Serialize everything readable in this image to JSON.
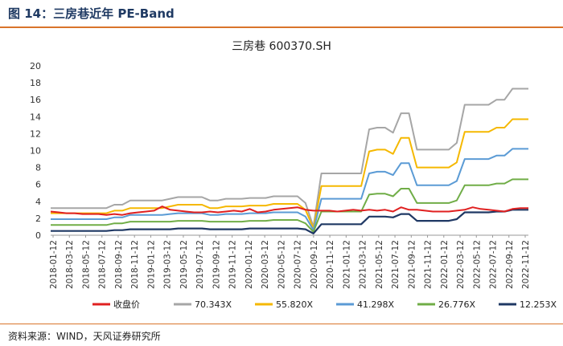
{
  "figure": {
    "title": "图 14：三房巷近年 PE-Band",
    "source": "资料来源：WIND，天风证券研究所"
  },
  "colors": {
    "accent_rule": "#d9742b",
    "title_text": "#1f3a63"
  },
  "chart_data": {
    "type": "line",
    "title": "三房巷 600370.SH",
    "xlabel": "",
    "ylabel": "",
    "ylim": [
      0,
      20
    ],
    "yticks": [
      0,
      2,
      4,
      6,
      8,
      10,
      12,
      14,
      16,
      18,
      20
    ],
    "grid": false,
    "legend_position": "bottom",
    "x_tick_labels": [
      "2018-01-12",
      "2018-03-12",
      "2018-05-12",
      "2018-07-12",
      "2018-09-12",
      "2018-11-12",
      "2019-01-12",
      "2019-03-12",
      "2019-05-12",
      "2019-07-12",
      "2019-09-12",
      "2019-11-12",
      "2020-01-12",
      "2020-03-12",
      "2020-05-12",
      "2020-07-12",
      "2020-09-12",
      "2020-11-12",
      "2021-01-12",
      "2021-03-12",
      "2021-05-12",
      "2021-07-12",
      "2021-09-12",
      "2021-11-12",
      "2022-01-12",
      "2022-03-12",
      "2022-05-12",
      "2022-07-12",
      "2022-09-12",
      "2022-11-12"
    ],
    "x": [
      "2018-01",
      "2018-02",
      "2018-03",
      "2018-04",
      "2018-05",
      "2018-06",
      "2018-07",
      "2018-08",
      "2018-09",
      "2018-10",
      "2018-11",
      "2018-12",
      "2019-01",
      "2019-02",
      "2019-03",
      "2019-04",
      "2019-05",
      "2019-06",
      "2019-07",
      "2019-08",
      "2019-09",
      "2019-10",
      "2019-11",
      "2019-12",
      "2020-01",
      "2020-02",
      "2020-03",
      "2020-04",
      "2020-05",
      "2020-06",
      "2020-07",
      "2020-08",
      "2020-09",
      "2020-10",
      "2020-11",
      "2020-12",
      "2021-01",
      "2021-02",
      "2021-03",
      "2021-04",
      "2021-05",
      "2021-06",
      "2021-07",
      "2021-08",
      "2021-09",
      "2021-10",
      "2021-11",
      "2021-12",
      "2022-01",
      "2022-02",
      "2022-03",
      "2022-04",
      "2022-05",
      "2022-06",
      "2022-07",
      "2022-08",
      "2022-09",
      "2022-10",
      "2022-11",
      "2022-12",
      "2023-01"
    ],
    "series": [
      {
        "name": "收盘价",
        "color": "#e02020",
        "width": 2,
        "values": [
          2.8,
          2.7,
          2.6,
          2.6,
          2.5,
          2.5,
          2.5,
          2.4,
          2.5,
          2.4,
          2.6,
          2.7,
          2.8,
          2.9,
          3.4,
          3.0,
          2.9,
          2.8,
          2.7,
          2.7,
          2.8,
          2.7,
          2.8,
          2.9,
          2.8,
          3.1,
          2.7,
          2.8,
          3.0,
          3.1,
          3.2,
          3.3,
          3.0,
          2.9,
          2.9,
          2.9,
          2.8,
          2.9,
          3.0,
          2.9,
          3.0,
          2.9,
          3.0,
          2.8,
          3.3,
          3.0,
          3.0,
          2.9,
          2.8,
          2.8,
          2.8,
          2.9,
          3.0,
          3.3,
          3.1,
          3.0,
          2.9,
          2.8,
          3.1,
          3.2,
          3.2
        ]
      },
      {
        "name": "70.343X",
        "color": "#a6a6a6",
        "width": 2,
        "values": [
          3.2,
          3.2,
          3.2,
          3.2,
          3.2,
          3.2,
          3.2,
          3.2,
          3.6,
          3.6,
          4.1,
          4.1,
          4.1,
          4.1,
          4.1,
          4.3,
          4.5,
          4.5,
          4.5,
          4.5,
          4.1,
          4.1,
          4.3,
          4.3,
          4.3,
          4.4,
          4.4,
          4.4,
          4.6,
          4.6,
          4.6,
          4.6,
          3.8,
          1.0,
          7.3,
          7.3,
          7.3,
          7.3,
          7.3,
          7.3,
          12.5,
          12.7,
          12.7,
          12.1,
          14.4,
          14.4,
          10.1,
          10.1,
          10.1,
          10.1,
          10.1,
          10.9,
          15.4,
          15.4,
          15.4,
          15.4,
          16.0,
          16.0,
          17.3,
          17.3,
          17.3
        ]
      },
      {
        "name": "55.820X",
        "color": "#f5b800",
        "width": 2,
        "values": [
          2.6,
          2.6,
          2.6,
          2.6,
          2.6,
          2.6,
          2.6,
          2.6,
          2.9,
          2.9,
          3.2,
          3.2,
          3.2,
          3.2,
          3.2,
          3.4,
          3.6,
          3.6,
          3.6,
          3.6,
          3.2,
          3.2,
          3.4,
          3.4,
          3.4,
          3.5,
          3.5,
          3.5,
          3.7,
          3.7,
          3.7,
          3.7,
          3.0,
          0.8,
          5.8,
          5.8,
          5.8,
          5.8,
          5.8,
          5.8,
          9.9,
          10.1,
          10.1,
          9.6,
          11.5,
          11.5,
          8.0,
          8.0,
          8.0,
          8.0,
          8.0,
          8.6,
          12.2,
          12.2,
          12.2,
          12.2,
          12.7,
          12.7,
          13.7,
          13.7,
          13.7
        ]
      },
      {
        "name": "41.298X",
        "color": "#5b9bd5",
        "width": 2,
        "values": [
          1.9,
          1.9,
          1.9,
          1.9,
          1.9,
          1.9,
          1.9,
          1.9,
          2.1,
          2.1,
          2.4,
          2.4,
          2.4,
          2.4,
          2.4,
          2.5,
          2.6,
          2.6,
          2.6,
          2.6,
          2.4,
          2.4,
          2.5,
          2.5,
          2.5,
          2.6,
          2.6,
          2.6,
          2.7,
          2.7,
          2.7,
          2.7,
          2.2,
          0.6,
          4.3,
          4.3,
          4.3,
          4.3,
          4.3,
          4.3,
          7.3,
          7.5,
          7.5,
          7.1,
          8.5,
          8.5,
          5.9,
          5.9,
          5.9,
          5.9,
          5.9,
          6.4,
          9.0,
          9.0,
          9.0,
          9.0,
          9.4,
          9.4,
          10.2,
          10.2,
          10.2
        ]
      },
      {
        "name": "26.776X",
        "color": "#70ad47",
        "width": 2,
        "values": [
          1.2,
          1.2,
          1.2,
          1.2,
          1.2,
          1.2,
          1.2,
          1.2,
          1.4,
          1.4,
          1.6,
          1.6,
          1.6,
          1.6,
          1.6,
          1.6,
          1.7,
          1.7,
          1.7,
          1.7,
          1.6,
          1.6,
          1.6,
          1.6,
          1.6,
          1.7,
          1.7,
          1.7,
          1.8,
          1.8,
          1.8,
          1.8,
          1.4,
          0.4,
          2.8,
          2.8,
          2.8,
          2.8,
          2.8,
          2.8,
          4.8,
          4.9,
          4.9,
          4.6,
          5.5,
          5.5,
          3.8,
          3.8,
          3.8,
          3.8,
          3.8,
          4.1,
          5.9,
          5.9,
          5.9,
          5.9,
          6.1,
          6.1,
          6.6,
          6.6,
          6.6
        ]
      },
      {
        "name": "12.253X",
        "color": "#1f3864",
        "width": 2.2,
        "values": [
          0.5,
          0.5,
          0.5,
          0.5,
          0.5,
          0.5,
          0.5,
          0.5,
          0.6,
          0.6,
          0.7,
          0.7,
          0.7,
          0.7,
          0.7,
          0.7,
          0.8,
          0.8,
          0.8,
          0.8,
          0.7,
          0.7,
          0.7,
          0.7,
          0.7,
          0.8,
          0.8,
          0.8,
          0.8,
          0.8,
          0.8,
          0.8,
          0.7,
          0.2,
          1.3,
          1.3,
          1.3,
          1.3,
          1.3,
          1.3,
          2.2,
          2.2,
          2.2,
          2.1,
          2.5,
          2.5,
          1.7,
          1.7,
          1.7,
          1.7,
          1.7,
          1.9,
          2.7,
          2.7,
          2.7,
          2.7,
          2.8,
          2.8,
          3.0,
          3.0,
          3.0
        ]
      }
    ]
  }
}
